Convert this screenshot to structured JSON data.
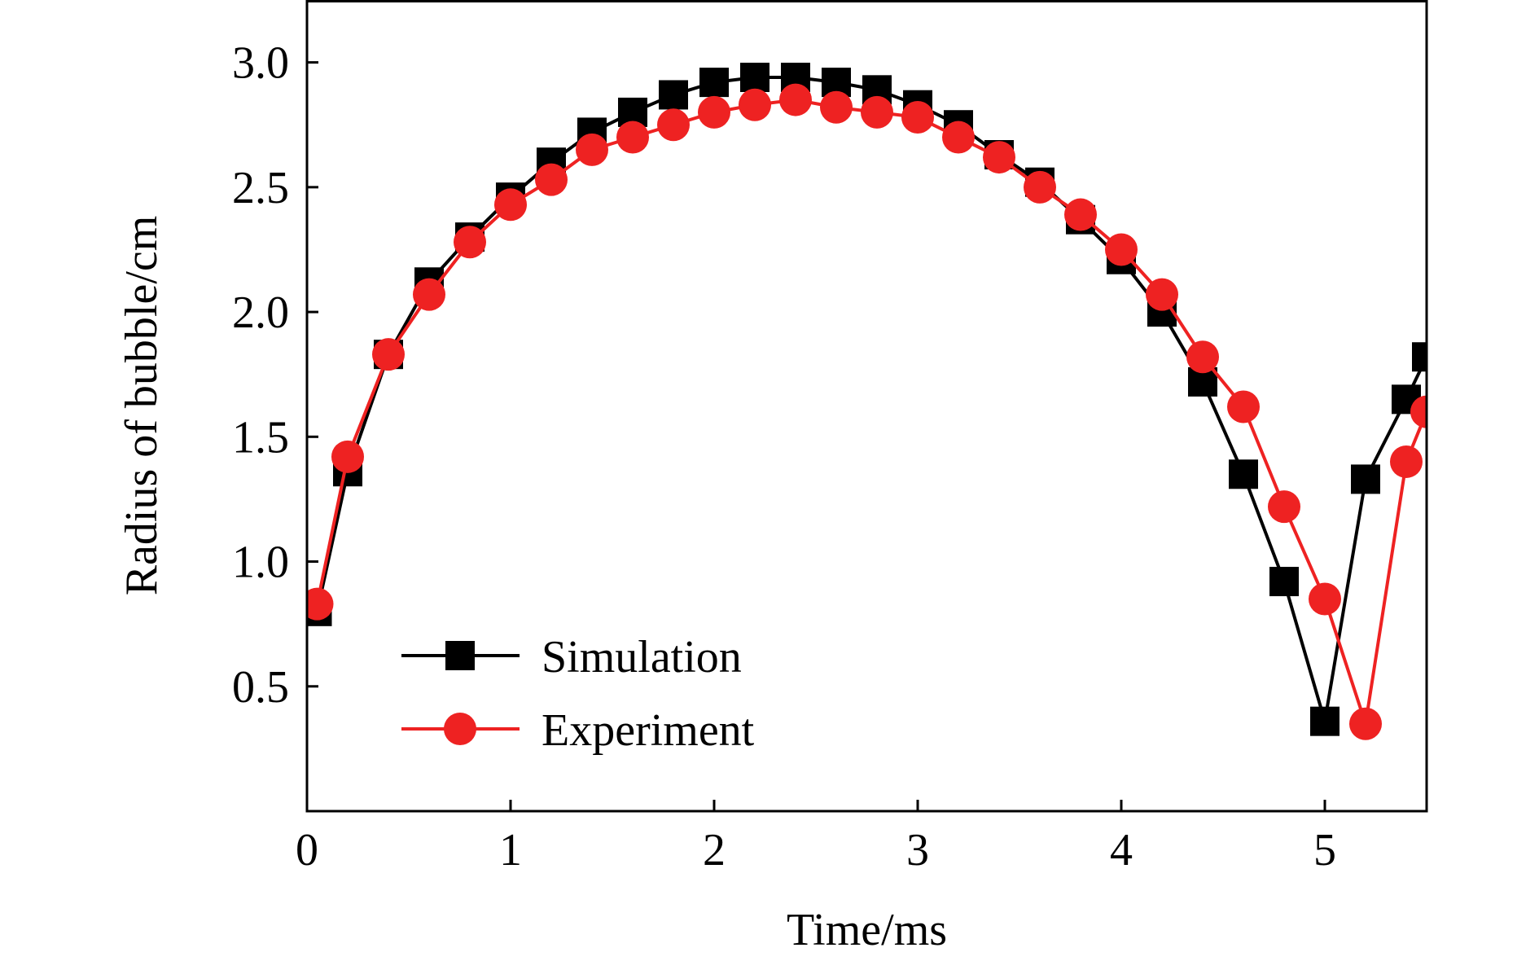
{
  "chart_data": {
    "type": "line",
    "title": "",
    "xlabel": "Time/ms",
    "ylabel": "Radius of bubble/cm",
    "xlim": [
      0,
      5.5
    ],
    "ylim": [
      0,
      3.25
    ],
    "xticks": [
      0,
      1,
      2,
      3,
      4,
      5
    ],
    "xtick_labels": [
      "0",
      "1",
      "2",
      "3",
      "4",
      "5"
    ],
    "yticks": [
      0.5,
      1.0,
      1.5,
      2.0,
      2.5,
      3.0
    ],
    "ytick_labels": [
      "0.5",
      "1.0",
      "1.5",
      "2.0",
      "2.5",
      "3.0"
    ],
    "grid": false,
    "legend_position": "bottom-left",
    "series": [
      {
        "name": "Simulation",
        "color": "#000000",
        "marker": "square",
        "x": [
          0.05,
          0.2,
          0.4,
          0.6,
          0.8,
          1.0,
          1.2,
          1.4,
          1.6,
          1.8,
          2.0,
          2.2,
          2.4,
          2.6,
          2.8,
          3.0,
          3.2,
          3.4,
          3.6,
          3.8,
          4.0,
          4.2,
          4.4,
          4.6,
          4.8,
          5.0,
          5.2,
          5.4,
          5.5
        ],
        "y": [
          0.8,
          1.36,
          1.83,
          2.12,
          2.3,
          2.46,
          2.6,
          2.72,
          2.8,
          2.87,
          2.92,
          2.94,
          2.94,
          2.92,
          2.89,
          2.83,
          2.75,
          2.63,
          2.52,
          2.37,
          2.21,
          2.0,
          1.72,
          1.35,
          0.92,
          0.36,
          1.33,
          1.65,
          1.82
        ]
      },
      {
        "name": "Experiment",
        "color": "#ee2222",
        "marker": "circle",
        "x": [
          0.05,
          0.2,
          0.4,
          0.6,
          0.8,
          1.0,
          1.2,
          1.4,
          1.6,
          1.8,
          2.0,
          2.2,
          2.4,
          2.6,
          2.8,
          3.0,
          3.2,
          3.4,
          3.6,
          3.8,
          4.0,
          4.2,
          4.4,
          4.6,
          4.8,
          5.0,
          5.2,
          5.4,
          5.5
        ],
        "y": [
          0.83,
          1.42,
          1.83,
          2.07,
          2.28,
          2.43,
          2.53,
          2.65,
          2.7,
          2.75,
          2.8,
          2.83,
          2.85,
          2.82,
          2.8,
          2.78,
          2.7,
          2.62,
          2.5,
          2.39,
          2.25,
          2.07,
          1.82,
          1.62,
          1.22,
          0.85,
          0.35,
          1.4,
          1.6
        ]
      }
    ]
  }
}
